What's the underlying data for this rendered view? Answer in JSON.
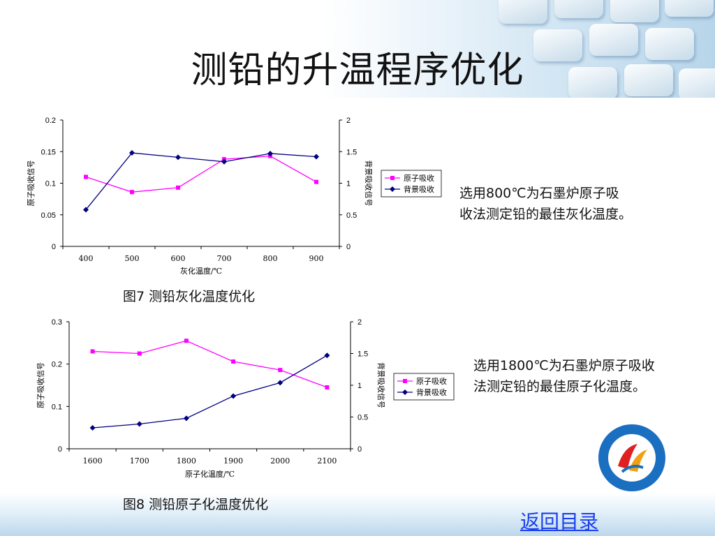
{
  "slide": {
    "title": "测铅的升温程序优化",
    "caption1": "图7 测铅灰化温度优化",
    "caption2": "图8 测铅原子化温度优化",
    "desc1_line1": "选用800℃为石墨炉原子吸",
    "desc1_line2": "收法测定铅的最佳灰化温度。",
    "desc2_line1": "选用1800℃为石墨炉原子吸收",
    "desc2_line2": "法测定铅的最佳原子化温度。",
    "back_link": "返回目录"
  },
  "colors": {
    "series_pink": "#ff00ff",
    "series_navy": "#000080"
  },
  "chart_data": [
    {
      "type": "line",
      "categories": [
        "400",
        "500",
        "600",
        "700",
        "800",
        "900"
      ],
      "xlabel": "灰化温度/℃",
      "ylabel": "原子吸收信号",
      "y2label": "背景吸收信号",
      "ylim": [
        0,
        0.2
      ],
      "yticks": [
        "0",
        "0.05",
        "0.1",
        "0.15",
        "0.2"
      ],
      "y2lim": [
        0,
        2
      ],
      "y2ticks": [
        "0",
        "0.5",
        "1",
        "1.5",
        "2"
      ],
      "legend_position": "right",
      "series": [
        {
          "name": "原子吸收",
          "axis": "left",
          "marker": "square",
          "color": "#ff00ff",
          "values": [
            0.11,
            0.086,
            0.093,
            0.138,
            0.143,
            0.102
          ]
        },
        {
          "name": "背景吸收",
          "axis": "right",
          "marker": "diamond",
          "color": "#000080",
          "values": [
            0.58,
            1.48,
            1.41,
            1.34,
            1.47,
            1.42
          ]
        }
      ]
    },
    {
      "type": "line",
      "categories": [
        "1600",
        "1700",
        "1800",
        "1900",
        "2000",
        "2100"
      ],
      "xlabel": "原子化温度/℃",
      "ylabel": "原子吸收信号",
      "y2label": "背景吸收信号",
      "ylim": [
        0,
        0.3
      ],
      "yticks": [
        "0",
        "0.1",
        "0.2",
        "0.3"
      ],
      "y2lim": [
        0,
        2
      ],
      "y2ticks": [
        "0",
        "0.5",
        "1",
        "1.5",
        "2"
      ],
      "legend_position": "right",
      "series": [
        {
          "name": "原子吸收",
          "axis": "left",
          "marker": "square",
          "color": "#ff00ff",
          "values": [
            0.23,
            0.225,
            0.255,
            0.206,
            0.186,
            0.145
          ]
        },
        {
          "name": "背景吸收",
          "axis": "right",
          "marker": "diamond",
          "color": "#000080",
          "values": [
            0.33,
            0.39,
            0.48,
            0.83,
            1.04,
            1.47
          ]
        }
      ]
    }
  ]
}
